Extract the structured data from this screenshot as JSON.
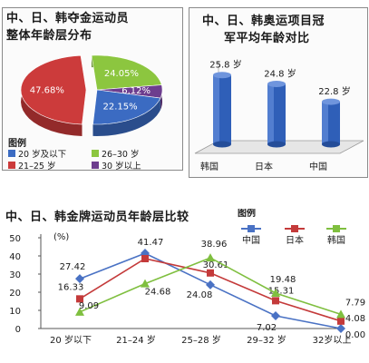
{
  "colors": {
    "red": "#cc3b3b",
    "green": "#8cc63f",
    "blue": "#3b6bc2",
    "purple": "#6d3d8e",
    "china": "#4a72c4",
    "japan": "#c43a3a",
    "korea": "#7fbf3f"
  },
  "chart_data": [
    {
      "type": "pie",
      "title": "中、日、韩夺金运动员整体年龄层分布",
      "title_lines": [
        "中、日、韩夺金运动员",
        "整体年龄层分布"
      ],
      "legend_title": "图例",
      "slices": [
        {
          "label": "20 岁及以下",
          "value": 22.15,
          "value_label": "22.15%",
          "color": "#3b6bc2"
        },
        {
          "label": "21–25 岁",
          "value": 47.68,
          "value_label": "47.68%",
          "color": "#cc3b3b"
        },
        {
          "label": "26–30 岁",
          "value": 24.05,
          "value_label": "24.05%",
          "color": "#8cc63f"
        },
        {
          "label": "30 岁以上",
          "value": 6.12,
          "value_label": "6.12%",
          "color": "#6d3d8e"
        }
      ]
    },
    {
      "type": "bar",
      "title": "中、日、韩奥运项目冠军平均年龄对比",
      "title_lines": [
        "中、日、韩奥运项目冠",
        "军平均年龄对比"
      ],
      "categories": [
        "韩国",
        "日本",
        "中国"
      ],
      "values": [
        25.8,
        24.8,
        22.8
      ],
      "value_labels": [
        "25.8 岁",
        "24.8 岁",
        "22.8 岁"
      ],
      "ylim": [
        18,
        27
      ]
    },
    {
      "type": "line",
      "title": "中、日、韩金牌运动员年龄层比较",
      "ylabel": "(%)",
      "ylim": [
        0,
        50
      ],
      "yticks": [
        0,
        10,
        20,
        30,
        40,
        50
      ],
      "categories": [
        "20 岁以下",
        "21–24 岁",
        "25–28 岁",
        "29–32 岁",
        "32岁以上"
      ],
      "legend_title": "图例",
      "series": [
        {
          "name": "中国",
          "values": [
            27.42,
            41.47,
            24.08,
            7.02,
            0.0
          ],
          "labels": [
            "27.42",
            "41.47",
            "24.08",
            "7.02",
            "0.00"
          ],
          "color": "#4a72c4"
        },
        {
          "name": "日本",
          "values": [
            16.33,
            38.5,
            30.61,
            15.31,
            4.08
          ],
          "labels": [
            "16.33",
            "",
            "30.61",
            "15.31",
            "4.08"
          ],
          "color": "#c43a3a"
        },
        {
          "name": "韩国",
          "values": [
            9.09,
            24.68,
            38.96,
            19.48,
            7.79
          ],
          "labels": [
            "9.09",
            "24.68",
            "38.96",
            "19.48",
            "7.79"
          ],
          "color": "#7fbf3f"
        }
      ]
    }
  ]
}
